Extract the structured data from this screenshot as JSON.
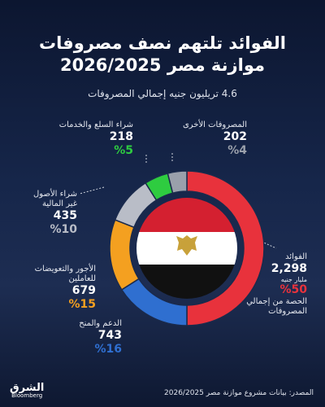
{
  "chart_data": {
    "type": "pie",
    "title": "الفوائد تلتهم نصف مصروفات\nموازنة مصر 2026/2025",
    "subtitle": "4.6 تريليون جنيه إجمالي المصروفات",
    "categories": [
      "الفوائد",
      "الدعم والمنح",
      "الأجور والتعويضات\nللعاملين",
      "شراء الأصول\nغير المالية",
      "شراء السلع والخدمات",
      "المصروفات الأخرى"
    ],
    "values": [
      50,
      16,
      15,
      10,
      5,
      4
    ],
    "value_labels": [
      "%50",
      "%16",
      "%15",
      "%10",
      "%5",
      "%4"
    ],
    "amounts": [
      2298,
      743,
      679,
      435,
      218,
      202
    ],
    "amount_labels": [
      "2,298",
      "743",
      "679",
      "435",
      "218",
      "202"
    ],
    "colors": [
      "#e8323c",
      "#2f6fd0",
      "#f4a020",
      "#b9bdc7",
      "#2ecc40",
      "#9aa0ab"
    ],
    "unit_label": "مليار جنيه",
    "share_caption": "الحصة من إجمالي\nالمصروفات",
    "source": "المصدر: بيانات مشروع موازنة مصر 2026/2025",
    "logo": "الشرق",
    "logo_sub": "Bloomberg"
  }
}
